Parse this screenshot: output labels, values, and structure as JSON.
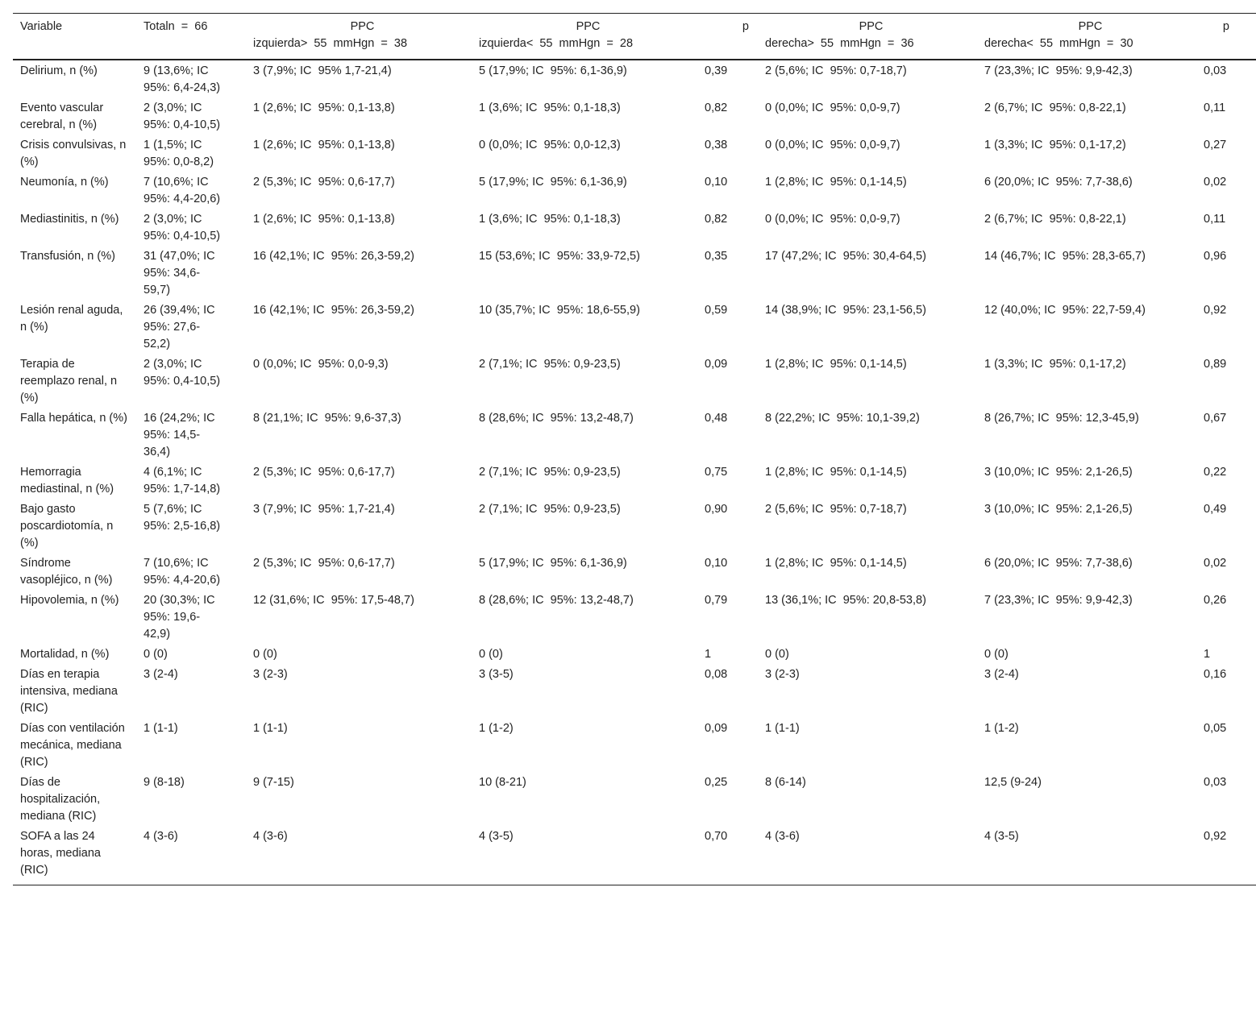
{
  "headers": {
    "variable": "Variable",
    "total": "Totaln  =  66",
    "ppc": "PPC",
    "izq_mayor": "izquierda>  55  mmHgn  =  38",
    "izq_menor": "izquierda<  55  mmHgn  =  28",
    "p": "p",
    "der_mayor": "derecha>  55  mmHgn  =  36",
    "der_menor": "derecha<  55  mmHgn  =  30"
  },
  "rows": [
    [
      "Delirium, n (%)",
      "9 (13,6%; IC  95%: 6,4-24,3)",
      "3 (7,9%; IC  95% 1,7-21,4)",
      "5 (17,9%; IC  95%: 6,1-36,9)",
      "0,39",
      "2 (5,6%; IC  95%: 0,7-18,7)",
      "7 (23,3%; IC  95%: 9,9-42,3)",
      "0,03"
    ],
    [
      "Evento vascular cerebral, n (%)",
      "2 (3,0%; IC  95%: 0,4-10,5)",
      "1 (2,6%; IC  95%: 0,1-13,8)",
      "1 (3,6%; IC  95%: 0,1-18,3)",
      "0,82",
      "0 (0,0%; IC  95%: 0,0-9,7)",
      "2 (6,7%; IC  95%: 0,8-22,1)",
      "0,11"
    ],
    [
      "Crisis convulsivas, n (%)",
      "1 (1,5%; IC  95%: 0,0-8,2)",
      "1 (2,6%; IC  95%: 0,1-13,8)",
      "0 (0,0%; IC  95%: 0,0-12,3)",
      "0,38",
      "0 (0,0%; IC  95%: 0,0-9,7)",
      "1 (3,3%; IC  95%: 0,1-17,2)",
      "0,27"
    ],
    [
      "Neumonía, n (%)",
      "7 (10,6%; IC  95%: 4,4-20,6)",
      "2 (5,3%; IC  95%: 0,6-17,7)",
      "5 (17,9%; IC  95%: 6,1-36,9)",
      "0,10",
      "1 (2,8%; IC  95%: 0,1-14,5)",
      "6 (20,0%; IC  95%: 7,7-38,6)",
      "0,02"
    ],
    [
      "Mediastinitis, n (%)",
      "2 (3,0%; IC  95%: 0,4-10,5)",
      "1 (2,6%; IC  95%: 0,1-13,8)",
      "1 (3,6%; IC  95%: 0,1-18,3)",
      "0,82",
      "0 (0,0%; IC  95%: 0,0-9,7)",
      "2 (6,7%; IC  95%: 0,8-22,1)",
      "0,11"
    ],
    [
      "Transfusión, n (%)",
      "31 (47,0%; IC  95%: 34,6-59,7)",
      "16 (42,1%; IC  95%: 26,3-59,2)",
      "15 (53,6%; IC  95%: 33,9-72,5)",
      "0,35",
      "17 (47,2%; IC  95%: 30,4-64,5)",
      "14 (46,7%; IC  95%: 28,3-65,7)",
      "0,96"
    ],
    [
      "Lesión renal aguda, n (%)",
      "26 (39,4%; IC  95%: 27,6-52,2)",
      "16 (42,1%; IC  95%: 26,3-59,2)",
      "10 (35,7%; IC  95%: 18,6-55,9)",
      "0,59",
      "14 (38,9%; IC  95%: 23,1-56,5)",
      "12 (40,0%; IC  95%: 22,7-59,4)",
      "0,92"
    ],
    [
      "Terapia de reemplazo renal, n (%)",
      "2 (3,0%; IC  95%: 0,4-10,5)",
      "0 (0,0%; IC  95%: 0,0-9,3)",
      "2 (7,1%; IC  95%: 0,9-23,5)",
      "0,09",
      "1 (2,8%; IC  95%: 0,1-14,5)",
      "1 (3,3%; IC  95%: 0,1-17,2)",
      "0,89"
    ],
    [
      "Falla hepática, n (%)",
      "16 (24,2%; IC  95%: 14,5-36,4)",
      "8 (21,1%; IC  95%: 9,6-37,3)",
      "8 (28,6%; IC  95%: 13,2-48,7)",
      "0,48",
      "8 (22,2%; IC  95%: 10,1-39,2)",
      "8 (26,7%; IC  95%: 12,3-45,9)",
      "0,67"
    ],
    [
      "Hemorragia mediastinal, n (%)",
      "4 (6,1%; IC  95%: 1,7-14,8)",
      "2 (5,3%; IC  95%: 0,6-17,7)",
      "2 (7,1%; IC  95%: 0,9-23,5)",
      "0,75",
      "1 (2,8%; IC  95%: 0,1-14,5)",
      "3 (10,0%; IC  95%: 2,1-26,5)",
      "0,22"
    ],
    [
      "Bajo gasto poscardiotomía, n (%)",
      "5 (7,6%; IC  95%: 2,5-16,8)",
      "3 (7,9%; IC  95%: 1,7-21,4)",
      "2 (7,1%; IC  95%: 0,9-23,5)",
      "0,90",
      "2 (5,6%; IC  95%: 0,7-18,7)",
      "3 (10,0%; IC  95%: 2,1-26,5)",
      "0,49"
    ],
    [
      "Síndrome vasopléjico, n (%)",
      "7 (10,6%; IC  95%: 4,4-20,6)",
      "2 (5,3%; IC  95%: 0,6-17,7)",
      "5 (17,9%; IC  95%: 6,1-36,9)",
      "0,10",
      "1 (2,8%; IC  95%: 0,1-14,5)",
      "6 (20,0%; IC  95%: 7,7-38,6)",
      "0,02"
    ],
    [
      "Hipovolemia, n (%)",
      "20 (30,3%; IC  95%: 19,6-42,9)",
      "12 (31,6%; IC  95%: 17,5-48,7)",
      "8 (28,6%; IC  95%: 13,2-48,7)",
      "0,79",
      "13 (36,1%; IC  95%: 20,8-53,8)",
      "7 (23,3%; IC  95%: 9,9-42,3)",
      "0,26"
    ],
    [
      "Mortalidad, n (%)",
      "0 (0)",
      "0 (0)",
      "0 (0)",
      "1",
      "0 (0)",
      "0 (0)",
      "1"
    ],
    [
      "Días en terapia intensiva, mediana (RIC)",
      "3 (2-4)",
      "3 (2-3)",
      "3 (3-5)",
      "0,08",
      "3 (2-3)",
      "3 (2-4)",
      "0,16"
    ],
    [
      "Días con ventilación mecánica, mediana (RIC)",
      "1 (1-1)",
      "1 (1-1)",
      "1 (1-2)",
      "0,09",
      "1 (1-1)",
      "1 (1-2)",
      "0,05"
    ],
    [
      "Días de hospitalización, mediana (RIC)",
      "9 (8-18)",
      "9 (7-15)",
      "10 (8-21)",
      "0,25",
      "8 (6-14)",
      "12,5 (9-24)",
      "0,03"
    ],
    [
      "SOFA a las 24  horas, mediana (RIC)",
      "4 (3-6)",
      "4 (3-6)",
      "4 (3-5)",
      "0,70",
      "4 (3-6)",
      "4 (3-5)",
      "0,92"
    ]
  ]
}
